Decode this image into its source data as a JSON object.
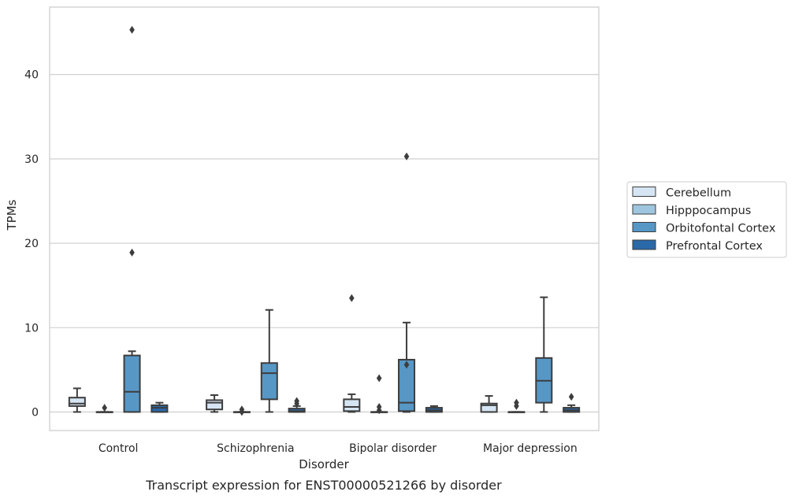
{
  "chart_data": {
    "type": "boxplot",
    "title": "Transcript expression for ENST00000521266 by disorder",
    "xlabel": "Disorder",
    "ylabel": "TPMs",
    "ylim": [
      -2.2,
      48
    ],
    "yticks": [
      0,
      10,
      20,
      30,
      40
    ],
    "grid": "y",
    "legend_position": "right",
    "categories": [
      "Control",
      "Schizophrenia",
      "Bipolar disorder",
      "Major depression"
    ],
    "series": [
      {
        "name": "Cerebellum",
        "color": "#d6e5f3",
        "boxes": [
          {
            "whislo": 0.0,
            "q1": 0.7,
            "med": 1.0,
            "q3": 1.7,
            "whishi": 2.8,
            "fliers": []
          },
          {
            "whislo": 0.0,
            "q1": 0.3,
            "med": 1.1,
            "q3": 1.4,
            "whishi": 2.0,
            "fliers": []
          },
          {
            "whislo": 0.0,
            "q1": 0.1,
            "med": 0.6,
            "q3": 1.5,
            "whishi": 2.1,
            "fliers": [
              13.5
            ]
          },
          {
            "whislo": 0.0,
            "q1": 0.0,
            "med": 0.8,
            "q3": 1.0,
            "whishi": 1.9,
            "fliers": []
          }
        ]
      },
      {
        "name": "Hipppocampus",
        "color": "#9fc6df",
        "boxes": [
          {
            "whislo": 0.0,
            "q1": 0.0,
            "med": 0.0,
            "q3": 0.0,
            "whishi": 0.0,
            "fliers": [
              0.5
            ]
          },
          {
            "whislo": 0.0,
            "q1": 0.0,
            "med": 0.0,
            "q3": 0.0,
            "whishi": 0.0,
            "fliers": [
              0.3,
              0.0
            ]
          },
          {
            "whislo": 0.0,
            "q1": 0.0,
            "med": 0.0,
            "q3": 0.0,
            "whishi": 0.0,
            "fliers": [
              4.0,
              0.6,
              0.2
            ]
          },
          {
            "whislo": 0.0,
            "q1": 0.0,
            "med": 0.0,
            "q3": 0.0,
            "whishi": 0.0,
            "fliers": [
              1.1,
              0.7
            ]
          }
        ]
      },
      {
        "name": "Orbitofontal Cortex",
        "color": "#5697c6",
        "boxes": [
          {
            "whislo": 0.0,
            "q1": 0.0,
            "med": 2.4,
            "q3": 6.7,
            "whishi": 7.2,
            "fliers": [
              45.3,
              18.9
            ]
          },
          {
            "whislo": 0.0,
            "q1": 1.5,
            "med": 4.6,
            "q3": 5.8,
            "whishi": 12.1,
            "fliers": []
          },
          {
            "whislo": 0.0,
            "q1": 0.1,
            "med": 1.1,
            "q3": 6.2,
            "whishi": 10.6,
            "fliers": [
              30.3,
              5.6
            ]
          },
          {
            "whislo": 0.0,
            "q1": 1.1,
            "med": 3.7,
            "q3": 6.4,
            "whishi": 13.6,
            "fliers": []
          }
        ]
      },
      {
        "name": "Prefrontal Cortex",
        "color": "#2a68a8",
        "boxes": [
          {
            "whislo": 0.0,
            "q1": 0.0,
            "med": 0.5,
            "q3": 0.8,
            "whishi": 1.1,
            "fliers": []
          },
          {
            "whislo": 0.0,
            "q1": 0.0,
            "med": 0.1,
            "q3": 0.4,
            "whishi": 0.7,
            "fliers": [
              1.3,
              1.0
            ]
          },
          {
            "whislo": 0.0,
            "q1": 0.0,
            "med": 0.2,
            "q3": 0.5,
            "whishi": 0.7,
            "fliers": []
          },
          {
            "whislo": 0.0,
            "q1": 0.0,
            "med": 0.2,
            "q3": 0.5,
            "whishi": 0.8,
            "fliers": [
              1.8
            ]
          }
        ]
      }
    ]
  }
}
